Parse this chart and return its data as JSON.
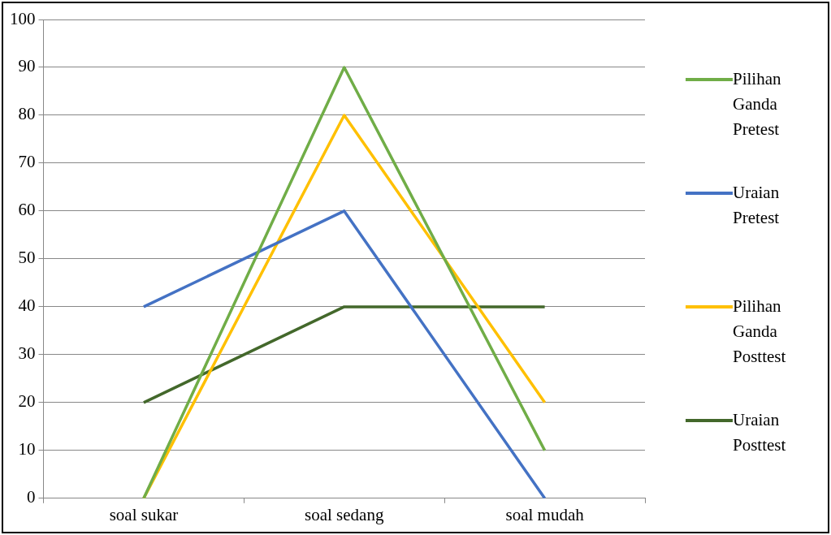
{
  "chart_data": {
    "type": "line",
    "categories": [
      "soal sukar",
      "soal sedang",
      "soal mudah"
    ],
    "series": [
      {
        "name": "Pilihan Ganda Pretest",
        "color": "#70ad47",
        "values": [
          0,
          90,
          10
        ]
      },
      {
        "name": "Uraian Pretest",
        "color": "#4472c4",
        "values": [
          40,
          60,
          0
        ]
      },
      {
        "name": "Pilihan Ganda Posttest",
        "color": "#ffc000",
        "values": [
          0,
          80,
          20
        ]
      },
      {
        "name": "Uraian Posttest",
        "color": "#43682b",
        "values": [
          20,
          40,
          40
        ]
      }
    ],
    "ylim": [
      0,
      100
    ],
    "yticks": [
      0,
      10,
      20,
      30,
      40,
      50,
      60,
      70,
      80,
      90,
      100
    ],
    "grid": "y",
    "legend": "right",
    "marker": "none",
    "line_style": "solid"
  }
}
